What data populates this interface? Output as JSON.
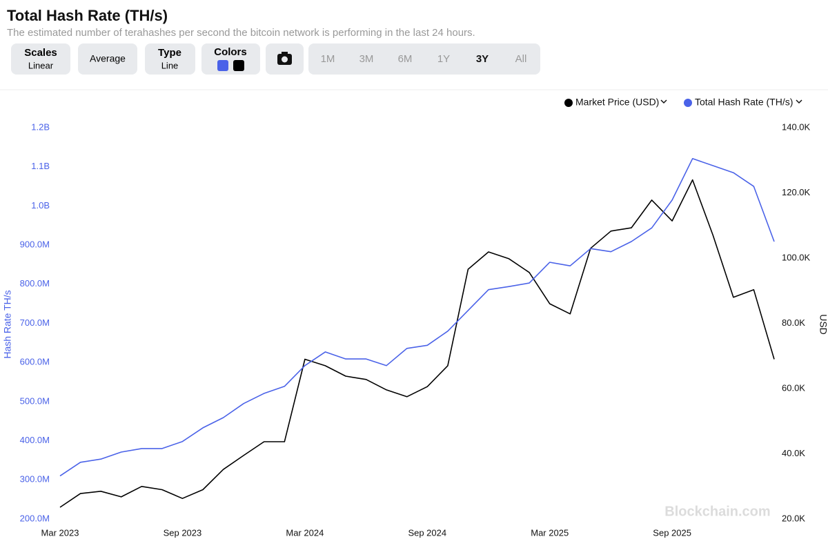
{
  "header": {
    "title": "Total Hash Rate (TH/s)",
    "subtitle": "The estimated number of terahashes per second the bitcoin network is performing in the last 24 hours."
  },
  "controls": {
    "scales_label": "Scales",
    "scales_value": "Linear",
    "average": "Average",
    "type_label": "Type",
    "type_value": "Line",
    "colors_label": "Colors",
    "ranges": [
      "1M",
      "3M",
      "6M",
      "1Y",
      "3Y",
      "All"
    ],
    "active_range": "3Y"
  },
  "watermark": "Blockchain.com",
  "chart_data": {
    "type": "line",
    "y_label": "Hash Rate TH/s",
    "y2_label": "USD",
    "x": [
      "2023-03",
      "2023-04",
      "2023-05",
      "2023-06",
      "2023-07",
      "2023-08",
      "2023-09",
      "2023-10",
      "2023-11",
      "2023-12",
      "2024-01",
      "2024-02",
      "2024-03",
      "2024-04",
      "2024-05",
      "2024-06",
      "2024-07",
      "2024-08",
      "2024-09",
      "2024-10",
      "2024-11",
      "2024-12",
      "2025-01",
      "2025-02",
      "2025-03",
      "2025-04",
      "2025-05",
      "2025-06",
      "2025-07",
      "2025-08",
      "2025-09",
      "2025-10",
      "2025-11",
      "2025-12",
      "2026-01",
      "2026-02"
    ],
    "xticks": [
      {
        "value": "2023-03",
        "label": "Mar 2023"
      },
      {
        "value": "2023-09",
        "label": "Sep 2023"
      },
      {
        "value": "2024-03",
        "label": "Mar 2024"
      },
      {
        "value": "2024-09",
        "label": "Sep 2024"
      },
      {
        "value": "2025-03",
        "label": "Mar 2025"
      },
      {
        "value": "2025-09",
        "label": "Sep 2025"
      }
    ],
    "ylim": [
      200000000,
      1200000000
    ],
    "yticks": [
      {
        "value": 200000000,
        "label": "200.0M"
      },
      {
        "value": 300000000,
        "label": "300.0M"
      },
      {
        "value": 400000000,
        "label": "400.0M"
      },
      {
        "value": 500000000,
        "label": "500.0M"
      },
      {
        "value": 600000000,
        "label": "600.0M"
      },
      {
        "value": 700000000,
        "label": "700.0M"
      },
      {
        "value": 800000000,
        "label": "800.0M"
      },
      {
        "value": 900000000,
        "label": "900.0M"
      },
      {
        "value": 1000000000,
        "label": "1.0B"
      },
      {
        "value": 1100000000,
        "label": "1.1B"
      },
      {
        "value": 1200000000,
        "label": "1.2B"
      }
    ],
    "y2lim": [
      20000,
      140000
    ],
    "y2ticks": [
      {
        "value": 20000,
        "label": "20.0K"
      },
      {
        "value": 40000,
        "label": "40.0K"
      },
      {
        "value": 60000,
        "label": "60.0K"
      },
      {
        "value": 80000,
        "label": "80.0K"
      },
      {
        "value": 100000,
        "label": "100.0K"
      },
      {
        "value": 120000,
        "label": "120.0K"
      },
      {
        "value": 140000,
        "label": "140.0K"
      }
    ],
    "series": [
      {
        "name": "Market Price (USD)",
        "color": "#000000",
        "axis": "y2",
        "values": [
          23600,
          27800,
          28500,
          26800,
          30000,
          29000,
          26300,
          29000,
          35200,
          39500,
          43700,
          43700,
          69000,
          67000,
          63800,
          62800,
          59600,
          57500,
          60600,
          67000,
          96600,
          101900,
          99800,
          95600,
          86000,
          82900,
          103000,
          108300,
          109300,
          117800,
          111400,
          124000,
          107000,
          88000,
          90300,
          69000
        ]
      },
      {
        "name": "Total Hash Rate (TH/s)",
        "color": "#4a62e8",
        "values": [
          310000000,
          345000000,
          353000000,
          371000000,
          380000000,
          380000000,
          398000000,
          433000000,
          459000000,
          495000000,
          521000000,
          539000000,
          592000000,
          627000000,
          609000000,
          609000000,
          592000000,
          636000000,
          644000000,
          680000000,
          733000000,
          786000000,
          794000000,
          803000000,
          856000000,
          847000000,
          891000000,
          883000000,
          909000000,
          944000000,
          1015000000,
          1121000000,
          1103000000,
          1085000000,
          1050000000,
          909000000
        ]
      }
    ]
  }
}
